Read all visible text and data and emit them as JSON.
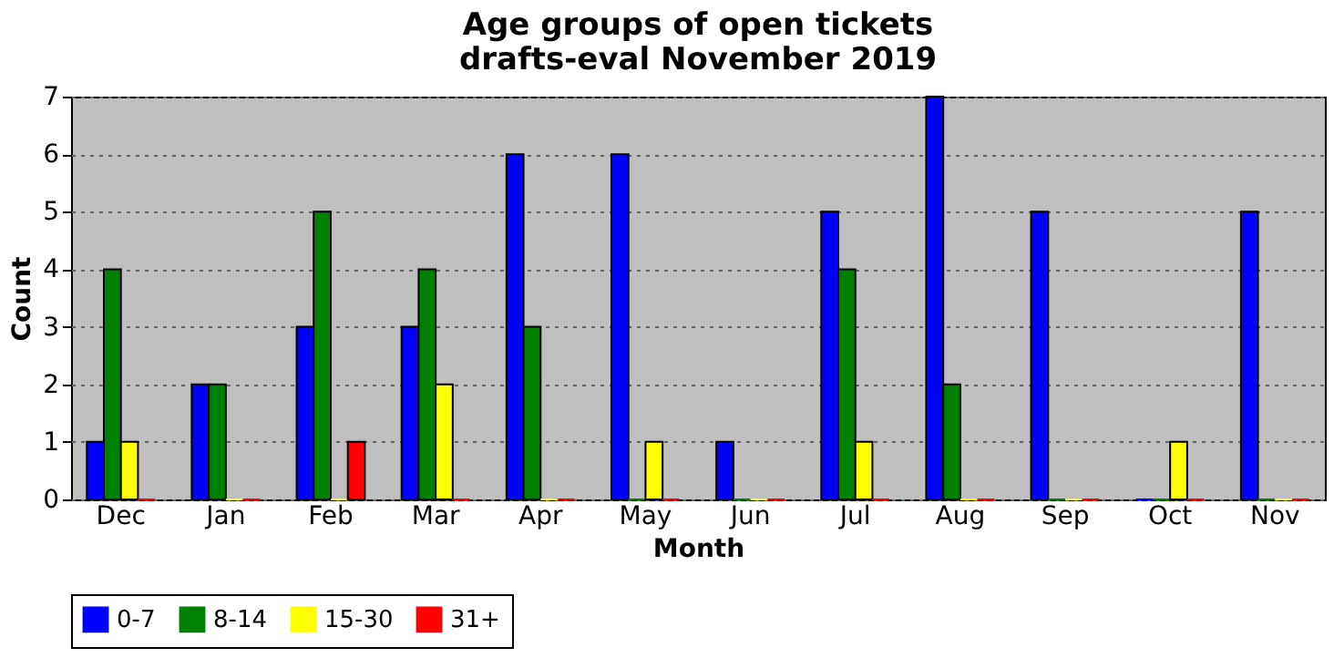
{
  "chart_data": {
    "type": "bar",
    "title": "Age groups of open tickets\ndrafts-eval November 2019",
    "xlabel": "Month",
    "ylabel": "Count",
    "categories": [
      "Dec",
      "Jan",
      "Feb",
      "Mar",
      "Apr",
      "May",
      "Jun",
      "Jul",
      "Aug",
      "Sep",
      "Oct",
      "Nov"
    ],
    "series": [
      {
        "name": "0-7",
        "color": "#0000ff",
        "values": [
          1,
          2,
          3,
          3,
          6,
          6,
          1,
          5,
          7,
          5,
          0,
          5
        ]
      },
      {
        "name": "8-14",
        "color": "#008000",
        "values": [
          4,
          2,
          5,
          4,
          3,
          0,
          0,
          4,
          2,
          0,
          0,
          0
        ]
      },
      {
        "name": "15-30",
        "color": "#ffff00",
        "values": [
          1,
          0,
          0,
          2,
          0,
          1,
          0,
          1,
          0,
          0,
          1,
          0
        ]
      },
      {
        "name": "31+",
        "color": "#ff0000",
        "values": [
          0,
          0,
          1,
          0,
          0,
          0,
          0,
          0,
          0,
          0,
          0,
          0
        ]
      }
    ],
    "ylim": [
      0,
      7
    ],
    "yticks": [
      0,
      1,
      2,
      3,
      4,
      5,
      6,
      7
    ],
    "grid": "y",
    "legend": "bottom"
  }
}
